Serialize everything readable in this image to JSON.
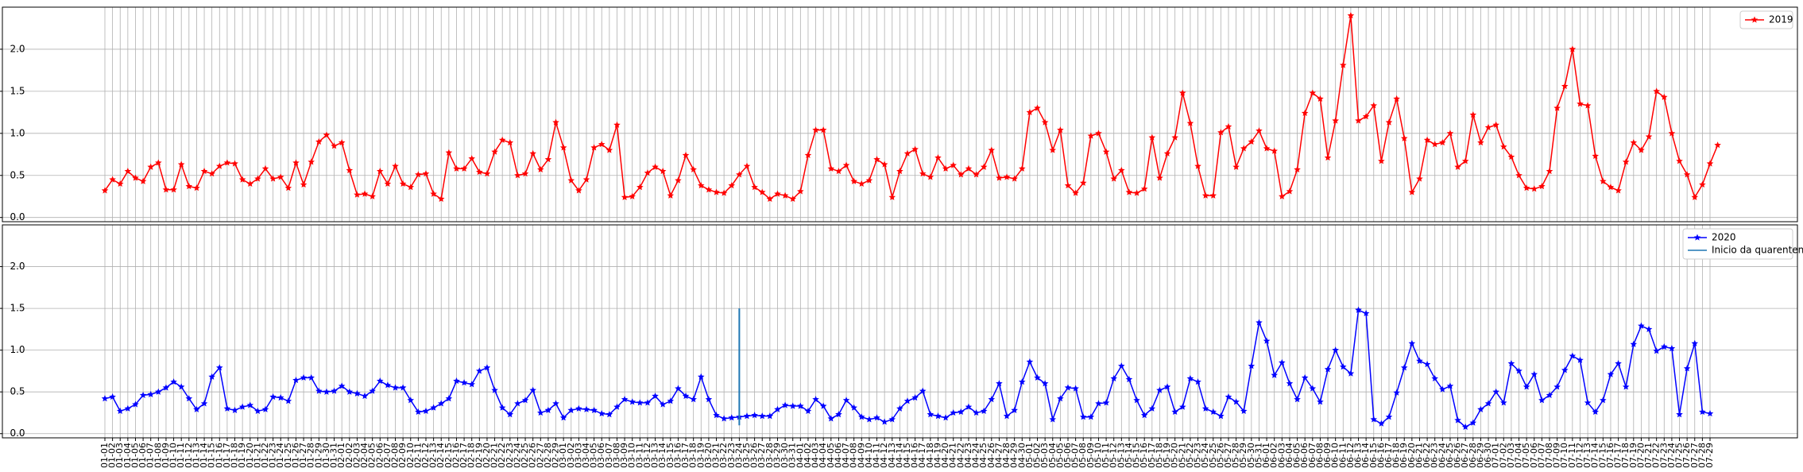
{
  "chart_data": [
    {
      "type": "line",
      "grid": true,
      "legend": "upper right",
      "ylim": [
        -0.05,
        2.5
      ],
      "yticks": [
        {
          "value": 0,
          "label": "0.0"
        },
        0.5,
        {
          "value": 1,
          "label": "1.0"
        },
        1.5,
        {
          "value": 2,
          "label": "2.0"
        }
      ],
      "series": [
        {
          "name": "2019",
          "color": "#ff0000",
          "values": [
            0.32,
            0.45,
            0.4,
            0.55,
            0.47,
            0.43,
            0.6,
            0.65,
            0.33,
            0.33,
            0.63,
            0.37,
            0.35,
            0.55,
            0.52,
            0.61,
            0.65,
            0.64,
            0.45,
            0.4,
            0.46,
            0.58,
            0.46,
            0.48,
            0.35,
            0.65,
            0.39,
            0.66,
            0.9,
            0.98,
            0.85,
            0.89,
            0.56,
            0.27,
            0.28,
            0.25,
            0.55,
            0.4,
            0.61,
            0.4,
            0.36,
            0.51,
            0.52,
            0.28,
            0.22,
            0.77,
            0.58,
            0.58,
            0.7,
            0.54,
            0.52,
            0.78,
            0.92,
            0.89,
            0.5,
            0.52,
            0.76,
            0.57,
            0.69,
            1.13,
            0.83,
            0.44,
            0.32,
            0.45,
            0.83,
            0.87,
            0.8,
            1.1,
            0.24,
            0.25,
            0.36,
            0.53,
            0.6,
            0.55,
            0.26,
            0.44,
            0.74,
            0.57,
            0.38,
            0.33,
            0.3,
            0.29,
            0.38,
            0.51,
            0.61,
            0.36,
            0.3,
            0.22,
            0.28,
            0.26,
            0.22,
            0.31,
            0.74,
            1.04,
            1.04,
            0.58,
            0.55,
            0.62,
            0.43,
            0.4,
            0.44,
            0.69,
            0.63,
            0.24,
            0.55,
            0.76,
            0.81,
            0.52,
            0.48,
            0.71,
            0.58,
            0.62,
            0.51,
            0.58,
            0.51,
            0.6,
            0.8,
            0.47,
            0.48,
            0.46,
            0.58,
            1.25,
            1.3,
            1.13,
            0.8,
            1.04,
            0.38,
            0.29,
            0.41,
            0.97,
            1.0,
            0.78,
            0.46,
            0.56,
            0.3,
            0.29,
            0.34,
            0.95,
            0.47,
            0.76,
            0.95,
            1.48,
            1.12,
            0.61,
            0.26,
            0.26,
            1.01,
            1.08,
            0.6,
            0.82,
            0.9,
            1.03,
            0.82,
            0.79,
            0.25,
            0.31,
            0.57,
            1.24,
            1.48,
            1.41,
            0.71,
            1.15,
            1.81,
            2.4,
            1.15,
            1.2,
            1.33,
            0.67,
            1.13,
            1.41,
            0.94,
            0.3,
            0.46,
            0.92,
            0.87,
            0.89,
            1.0,
            0.6,
            0.67,
            1.22,
            0.89,
            1.07,
            1.1,
            0.84,
            0.72,
            0.5,
            0.35,
            0.34,
            0.37,
            0.55,
            1.3,
            1.56,
            2.0,
            1.35,
            1.33,
            0.73,
            0.43,
            0.36,
            0.32,
            0.66,
            0.89,
            0.8,
            0.96,
            1.5,
            1.43,
            1.0,
            0.67,
            0.51,
            0.24,
            0.39,
            0.64,
            0.86
          ]
        }
      ]
    },
    {
      "type": "line",
      "grid": true,
      "legend": "upper right",
      "ylim": [
        -0.05,
        2.5
      ],
      "yticks": [
        {
          "value": 0,
          "label": "0.0"
        },
        0.5,
        {
          "value": 1,
          "label": "1.0"
        },
        1.5,
        {
          "value": 2,
          "label": "2.0"
        }
      ],
      "categories": [
        "01-01",
        "01-02",
        "01-03",
        "01-04",
        "01-05",
        "01-06",
        "01-07",
        "01-08",
        "01-09",
        "01-10",
        "01-11",
        "01-12",
        "01-13",
        "01-14",
        "01-15",
        "01-16",
        "01-17",
        "01-18",
        "01-19",
        "01-20",
        "01-21",
        "01-22",
        "01-23",
        "01-24",
        "01-25",
        "01-26",
        "01-27",
        "01-28",
        "01-29",
        "01-30",
        "01-31",
        "02-01",
        "02-02",
        "02-03",
        "02-04",
        "02-05",
        "02-06",
        "02-07",
        "02-08",
        "02-09",
        "02-10",
        "02-11",
        "02-12",
        "02-13",
        "02-14",
        "02-15",
        "02-16",
        "02-17",
        "02-18",
        "02-19",
        "02-20",
        "02-21",
        "02-22",
        "02-23",
        "02-24",
        "02-25",
        "02-26",
        "02-27",
        "02-28",
        "02-29",
        "03-01",
        "03-02",
        "03-03",
        "03-04",
        "03-05",
        "03-06",
        "03-07",
        "03-08",
        "03-09",
        "03-10",
        "03-11",
        "03-12",
        "03-13",
        "03-14",
        "03-15",
        "03-16",
        "03-17",
        "03-18",
        "03-19",
        "03-20",
        "03-21",
        "03-22",
        "03-23",
        "03-24",
        "03-25",
        "03-26",
        "03-27",
        "03-28",
        "03-29",
        "03-30",
        "03-31",
        "04-01",
        "04-02",
        "04-03",
        "04-04",
        "04-05",
        "04-06",
        "04-07",
        "04-08",
        "04-09",
        "04-10",
        "04-11",
        "04-12",
        "04-13",
        "04-14",
        "04-15",
        "04-16",
        "04-17",
        "04-18",
        "04-19",
        "04-20",
        "04-21",
        "04-22",
        "04-23",
        "04-24",
        "04-25",
        "04-26",
        "04-27",
        "04-28",
        "04-29",
        "04-30",
        "05-01",
        "05-02",
        "05-03",
        "05-04",
        "05-05",
        "05-06",
        "05-07",
        "05-08",
        "05-09",
        "05-10",
        "05-11",
        "05-12",
        "05-13",
        "05-14",
        "05-15",
        "05-16",
        "05-17",
        "05-18",
        "05-19",
        "05-20",
        "05-21",
        "05-22",
        "05-23",
        "05-24",
        "05-25",
        "05-26",
        "05-27",
        "05-28",
        "05-29",
        "05-30",
        "05-31",
        "06-01",
        "06-02",
        "06-03",
        "06-04",
        "06-05",
        "06-06",
        "06-07",
        "06-08",
        "06-09",
        "06-10",
        "06-11",
        "06-12",
        "06-13",
        "06-14",
        "06-15",
        "06-16",
        "06-17",
        "06-18",
        "06-19",
        "06-20",
        "06-21",
        "06-22",
        "06-23",
        "06-24",
        "06-25",
        "06-26",
        "06-27",
        "06-28",
        "06-29",
        "06-30",
        "07-01",
        "07-02",
        "07-03",
        "07-04",
        "07-05",
        "07-06",
        "07-07",
        "07-08",
        "07-09",
        "07-10",
        "07-11",
        "07-12",
        "07-13",
        "07-14",
        "07-15",
        "07-16",
        "07-17",
        "07-18",
        "07-19",
        "07-20",
        "07-21",
        "07-22",
        "07-23",
        "07-24",
        "07-25",
        "07-26",
        "07-27",
        "07-28",
        "07-29"
      ],
      "series": [
        {
          "name": "2020",
          "color": "#0000ff",
          "values": [
            0.42,
            0.44,
            0.27,
            0.3,
            0.35,
            0.46,
            0.47,
            0.5,
            0.55,
            0.62,
            0.56,
            0.42,
            0.29,
            0.36,
            0.68,
            0.79,
            0.3,
            0.28,
            0.32,
            0.34,
            0.27,
            0.29,
            0.44,
            0.43,
            0.39,
            0.64,
            0.67,
            0.67,
            0.51,
            0.5,
            0.51,
            0.57,
            0.5,
            0.48,
            0.45,
            0.51,
            0.63,
            0.58,
            0.55,
            0.55,
            0.4,
            0.26,
            0.27,
            0.31,
            0.36,
            0.42,
            0.63,
            0.61,
            0.59,
            0.75,
            0.79,
            0.52,
            0.31,
            0.23,
            0.36,
            0.4,
            0.52,
            0.25,
            0.28,
            0.36,
            0.19,
            0.28,
            0.3,
            0.29,
            0.28,
            0.24,
            0.23,
            0.32,
            0.41,
            0.38,
            0.37,
            0.37,
            0.45,
            0.35,
            0.39,
            0.54,
            0.45,
            0.41,
            0.68,
            0.41,
            0.22,
            0.18,
            0.19,
            0.2,
            0.21,
            0.22,
            0.21,
            0.21,
            0.29,
            0.34,
            0.33,
            0.33,
            0.27,
            0.41,
            0.33,
            0.18,
            0.23,
            0.4,
            0.31,
            0.2,
            0.17,
            0.19,
            0.14,
            0.17,
            0.3,
            0.39,
            0.43,
            0.51,
            0.23,
            0.21,
            0.19,
            0.25,
            0.26,
            0.32,
            0.25,
            0.27,
            0.41,
            0.6,
            0.21,
            0.28,
            0.62,
            0.86,
            0.67,
            0.6,
            0.17,
            0.42,
            0.55,
            0.54,
            0.2,
            0.2,
            0.36,
            0.37,
            0.66,
            0.81,
            0.65,
            0.4,
            0.22,
            0.3,
            0.52,
            0.56,
            0.26,
            0.32,
            0.66,
            0.62,
            0.3,
            0.26,
            0.21,
            0.44,
            0.38,
            0.27,
            0.81,
            1.33,
            1.11,
            0.7,
            0.85,
            0.6,
            0.41,
            0.67,
            0.54,
            0.38,
            0.77,
            1.0,
            0.8,
            0.72,
            1.48,
            1.44,
            0.17,
            0.12,
            0.2,
            0.49,
            0.79,
            1.08,
            0.87,
            0.83,
            0.66,
            0.53,
            0.57,
            0.16,
            0.08,
            0.13,
            0.29,
            0.36,
            0.5,
            0.37,
            0.84,
            0.75,
            0.56,
            0.71,
            0.4,
            0.46,
            0.56,
            0.76,
            0.93,
            0.88,
            0.37,
            0.26,
            0.4,
            0.71,
            0.84,
            0.56,
            1.07,
            1.29,
            1.25,
            0.99,
            1.04,
            1.02,
            0.23,
            0.78,
            1.08,
            0.26,
            0.24
          ]
        }
      ],
      "vline": {
        "name": "Inicio da quarentena",
        "x": "03-24",
        "ymin": 0.1,
        "ymax": 1.5,
        "color": "#1f77b4"
      }
    }
  ]
}
